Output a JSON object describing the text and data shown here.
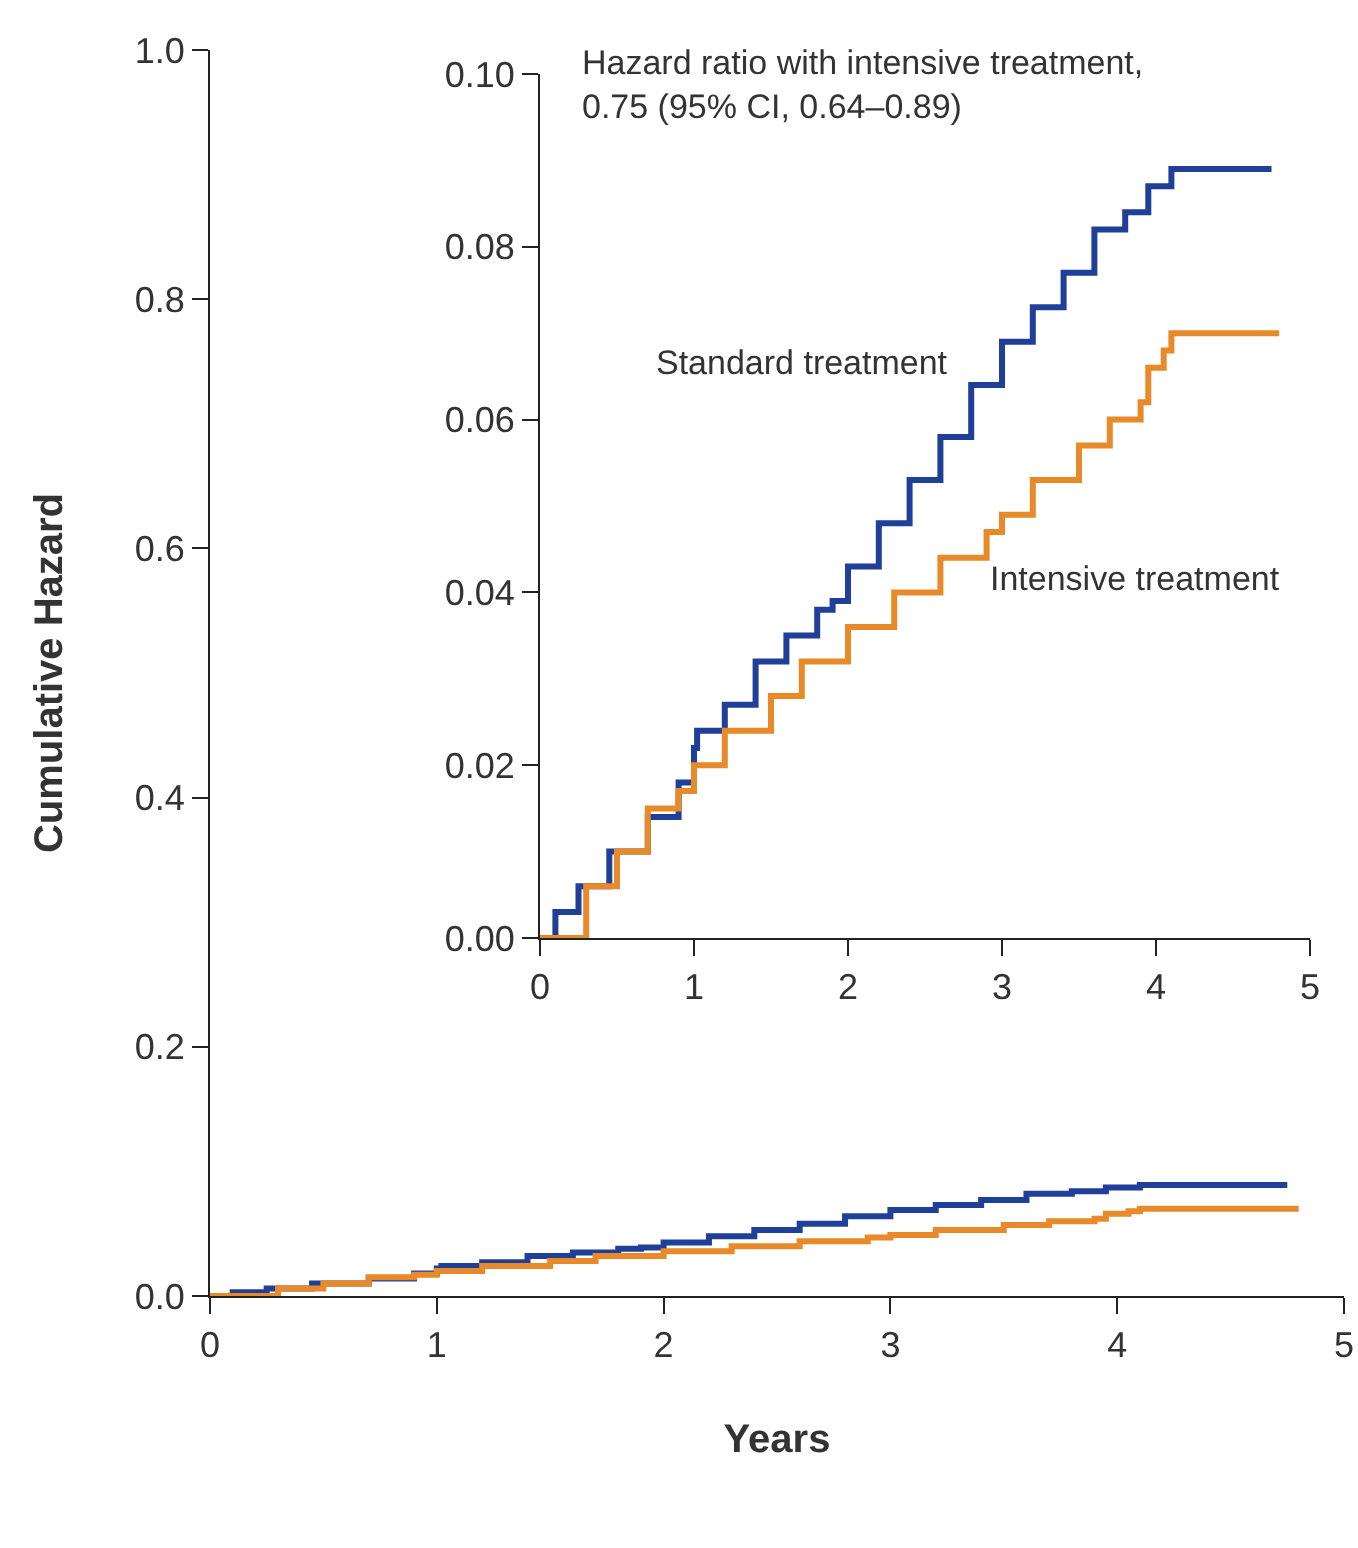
{
  "chart_data": [
    {
      "type": "step",
      "xlabel": "Years",
      "ylabel": "Cumulative Hazard",
      "xlim": [
        0,
        5
      ],
      "ylim": [
        0,
        1
      ],
      "xticks": [
        0,
        1,
        2,
        3,
        4,
        5
      ],
      "yticks": [
        {
          "value": 0,
          "label": "0.0"
        },
        {
          "value": 0.2,
          "label": "0.2"
        },
        {
          "value": 0.4,
          "label": "0.4"
        },
        {
          "value": 0.6,
          "label": "0.6"
        },
        {
          "value": 0.8,
          "label": "0.8"
        },
        {
          "value": 1,
          "label": "1.0"
        }
      ],
      "series": [
        {
          "color": "#1f3f99",
          "x": [
            0,
            0.1,
            0.25,
            0.45,
            0.7,
            0.9,
            1.0,
            1.02,
            1.2,
            1.4,
            1.6,
            1.8,
            1.9,
            2.0,
            2.2,
            2.4,
            2.6,
            2.8,
            3.0,
            3.2,
            3.4,
            3.6,
            3.8,
            3.95,
            4.1,
            4.75
          ],
          "values": [
            0,
            0.003,
            0.006,
            0.01,
            0.014,
            0.018,
            0.022,
            0.024,
            0.027,
            0.032,
            0.035,
            0.038,
            0.039,
            0.043,
            0.048,
            0.053,
            0.058,
            0.064,
            0.069,
            0.073,
            0.077,
            0.082,
            0.084,
            0.087,
            0.089,
            0.089
          ]
        },
        {
          "color": "#e8892a",
          "x": [
            0,
            0.3,
            0.5,
            0.7,
            0.9,
            1.0,
            1.2,
            1.5,
            1.7,
            2.0,
            2.3,
            2.6,
            2.9,
            3.0,
            3.2,
            3.5,
            3.7,
            3.9,
            3.95,
            4.05,
            4.1,
            4.8
          ],
          "values": [
            0,
            0.006,
            0.01,
            0.015,
            0.017,
            0.02,
            0.024,
            0.028,
            0.032,
            0.036,
            0.04,
            0.044,
            0.047,
            0.049,
            0.053,
            0.057,
            0.06,
            0.062,
            0.066,
            0.068,
            0.07,
            0.07
          ]
        }
      ]
    },
    {
      "type": "step",
      "annotations": [
        "Hazard ratio with intensive treatment,\n0.75 (95% CI, 0.64–0.89)"
      ],
      "xlim": [
        0,
        5
      ],
      "ylim": [
        0,
        0.1
      ],
      "xticks": [
        0,
        1,
        2,
        3,
        4,
        5
      ],
      "yticks": [
        {
          "value": 0,
          "label": "0.00"
        },
        {
          "value": 0.02,
          "label": "0.02"
        },
        {
          "value": 0.04,
          "label": "0.04"
        },
        {
          "value": 0.06,
          "label": "0.06"
        },
        {
          "value": 0.08,
          "label": "0.08"
        },
        {
          "value": 0.1,
          "label": "0.10"
        }
      ],
      "series": [
        {
          "name": "Standard treatment",
          "color": "#1f3f99",
          "x": [
            0,
            0.1,
            0.25,
            0.45,
            0.7,
            0.9,
            1.0,
            1.02,
            1.2,
            1.4,
            1.6,
            1.8,
            1.9,
            2.0,
            2.2,
            2.4,
            2.6,
            2.8,
            3.0,
            3.2,
            3.4,
            3.6,
            3.8,
            3.95,
            4.1,
            4.75
          ],
          "values": [
            0,
            0.003,
            0.006,
            0.01,
            0.014,
            0.018,
            0.022,
            0.024,
            0.027,
            0.032,
            0.035,
            0.038,
            0.039,
            0.043,
            0.048,
            0.053,
            0.058,
            0.064,
            0.069,
            0.073,
            0.077,
            0.082,
            0.084,
            0.087,
            0.089,
            0.089
          ]
        },
        {
          "name": "Intensive treatment",
          "color": "#e8892a",
          "x": [
            0,
            0.3,
            0.5,
            0.7,
            0.9,
            1.0,
            1.2,
            1.5,
            1.7,
            2.0,
            2.3,
            2.6,
            2.9,
            3.0,
            3.2,
            3.5,
            3.7,
            3.9,
            3.95,
            4.05,
            4.1,
            4.8
          ],
          "values": [
            0,
            0.006,
            0.01,
            0.015,
            0.017,
            0.02,
            0.024,
            0.028,
            0.032,
            0.036,
            0.04,
            0.044,
            0.047,
            0.049,
            0.053,
            0.057,
            0.06,
            0.062,
            0.066,
            0.068,
            0.07,
            0.07
          ]
        }
      ]
    }
  ]
}
